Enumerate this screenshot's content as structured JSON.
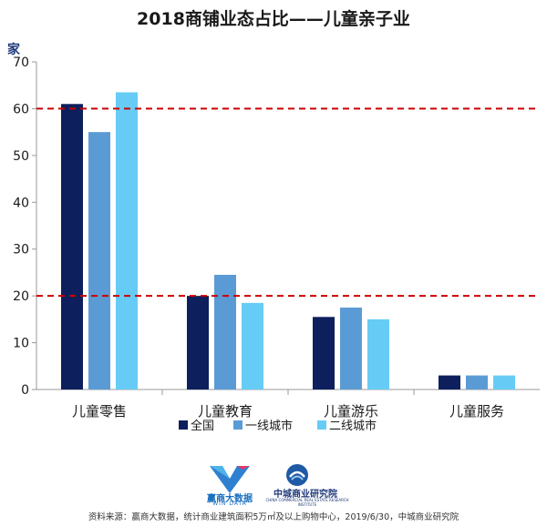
{
  "chart_data": {
    "type": "bar",
    "title": "2018商铺业态占比——儿童亲子业",
    "ylabel": "家",
    "xlabel": "",
    "ylim": [
      0,
      70
    ],
    "yticks": [
      0,
      10,
      20,
      30,
      40,
      50,
      60,
      70
    ],
    "categories": [
      "儿童零售",
      "儿童教育",
      "儿童游乐",
      "儿童服务"
    ],
    "series": [
      {
        "name": "全国",
        "color": "#0d1f5c",
        "values": [
          61,
          20,
          15.5,
          3
        ]
      },
      {
        "name": "一线城市",
        "color": "#5b9bd5",
        "values": [
          55,
          24.5,
          17.5,
          3
        ]
      },
      {
        "name": "二线城市",
        "color": "#66ccf5",
        "values": [
          63.5,
          18.5,
          15,
          3
        ]
      }
    ],
    "reference_lines": [
      {
        "value": 60,
        "color": "#cc0000",
        "style": "dashed"
      },
      {
        "value": 20,
        "color": "#cc0000",
        "style": "dashed"
      }
    ],
    "grid": false,
    "legend_position": "bottom"
  },
  "logos": {
    "win_name": "赢商大数据",
    "win_sub": "WIN DATA",
    "zc_name": "中城商业研究院",
    "zc_sub": "CHINA COMMERCIAL REAL ESTATE RESEARCH INSTITUTE"
  },
  "source": "资料来源：赢商大数据，统计商业建筑面积5万㎡及以上购物中心，2019/6/30，中城商业研究院"
}
